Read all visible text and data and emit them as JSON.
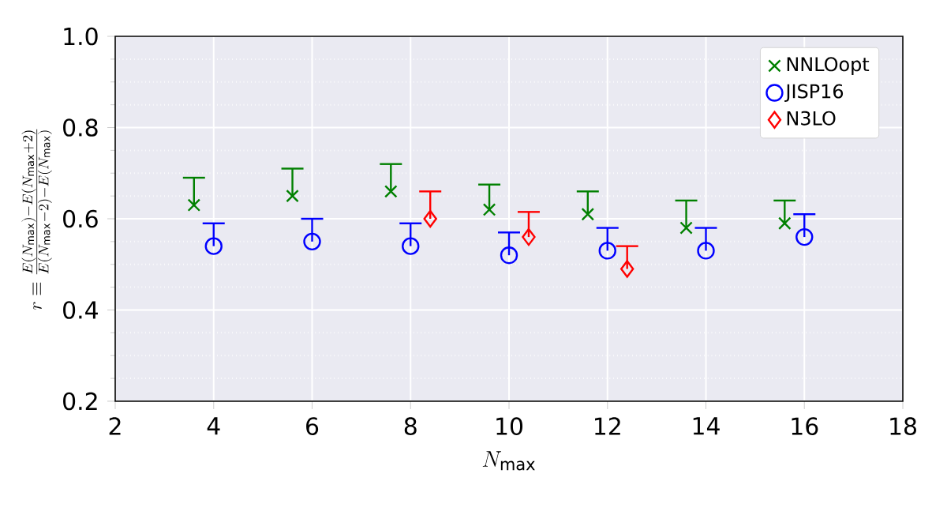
{
  "chart_data": {
    "type": "scatter",
    "xlabel": "N_{\\mathrm{max}}",
    "ylabel": "r\\equiv\\frac{E(N_{\\mathrm{max}})-E(N_{\\mathrm{max}}+2)}{E(N_{\\mathrm{max}}-2)-E(N_{\\mathrm{max}})}",
    "series": [
      {
        "name": "NNLOopt",
        "color": "#008000",
        "marker": "cross",
        "x": [
          3.6,
          5.6,
          7.6,
          9.6,
          11.6,
          13.6,
          15.6
        ],
        "values": [
          0.63,
          0.65,
          0.66,
          0.62,
          0.61,
          0.58,
          0.59
        ],
        "errors": [
          [
            0.63,
            0.69
          ],
          [
            0.65,
            0.71
          ],
          [
            0.66,
            0.72
          ],
          [
            0.62,
            0.675
          ],
          [
            0.61,
            0.66
          ],
          [
            0.58,
            0.64
          ],
          [
            0.59,
            0.64
          ]
        ]
      },
      {
        "name": "JISP16",
        "color": "#0000ff",
        "marker": "circle",
        "x": [
          4,
          6,
          8,
          10,
          12,
          14,
          16
        ],
        "values": [
          0.54,
          0.55,
          0.54,
          0.52,
          0.53,
          0.53,
          0.56
        ],
        "errors": [
          [
            0.54,
            0.59
          ],
          [
            0.55,
            0.6
          ],
          [
            0.54,
            0.59
          ],
          [
            0.52,
            0.57
          ],
          [
            0.53,
            0.58
          ],
          [
            0.53,
            0.58
          ],
          [
            0.56,
            0.61
          ]
        ]
      },
      {
        "name": "N3LO",
        "color": "#ff0000",
        "marker": "diamond",
        "x": [
          8.4,
          10.4,
          12.4
        ],
        "values": [
          0.6,
          0.56,
          0.49
        ],
        "errors": [
          [
            0.6,
            0.66
          ],
          [
            0.56,
            0.615
          ],
          [
            0.49,
            0.54
          ]
        ]
      }
    ],
    "xlim": [
      2,
      18
    ],
    "ylim": [
      0.2,
      1.0
    ],
    "xticks": [
      2,
      4,
      6,
      8,
      10,
      12,
      14,
      16,
      18
    ],
    "yticks": [
      {
        "value": 0.2,
        "label": "0.2"
      },
      {
        "value": 0.4,
        "label": "0.4"
      },
      {
        "value": 0.6,
        "label": "0.6"
      },
      {
        "value": 0.8,
        "label": "0.8"
      },
      {
        "value": 1.0,
        "label": "1.0"
      }
    ],
    "grid": true,
    "legend": "top right"
  }
}
